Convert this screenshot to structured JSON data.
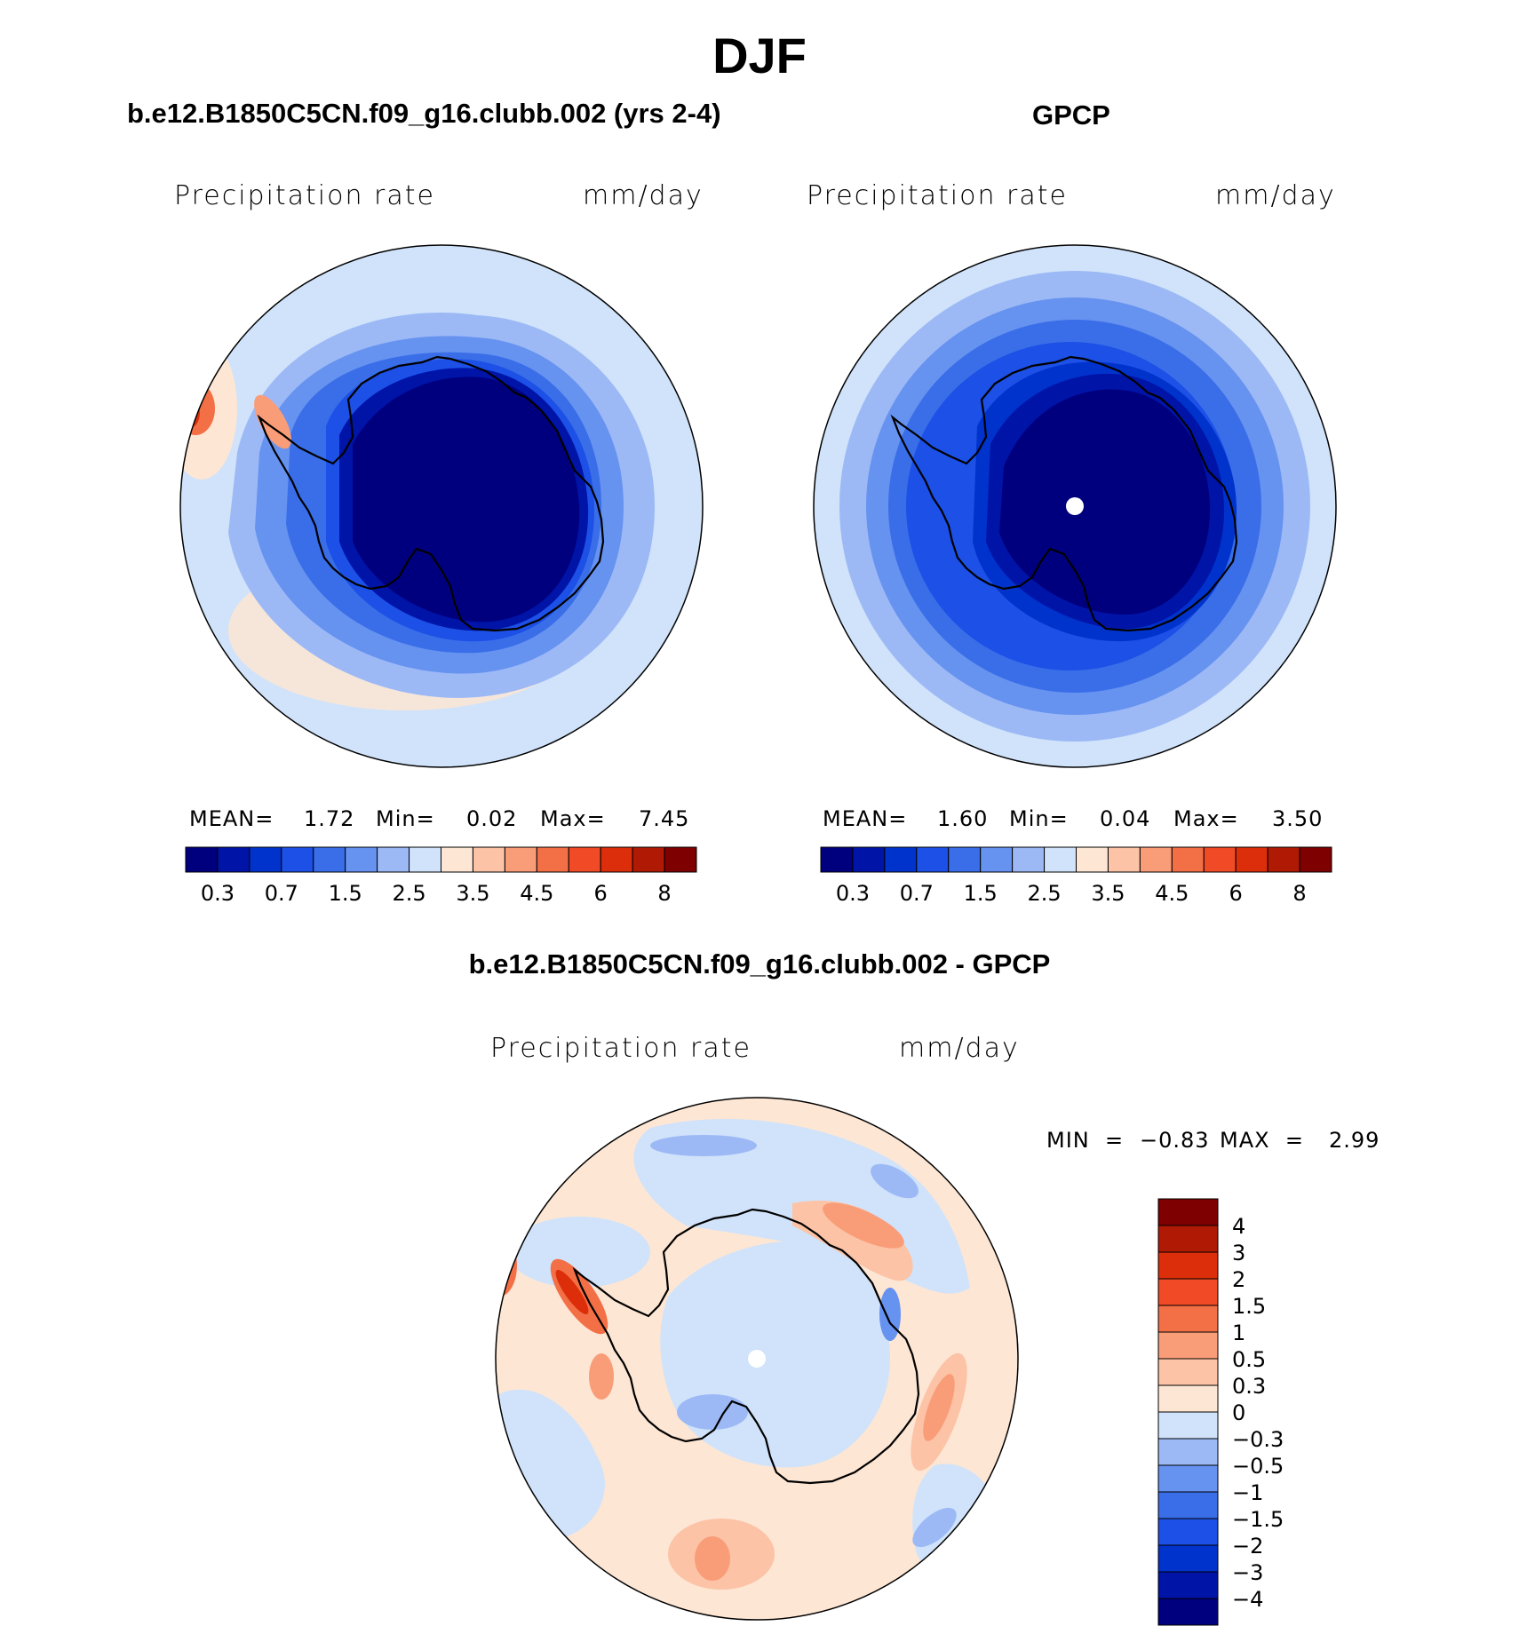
{
  "title": "DJF",
  "panels": [
    {
      "title": "b.e12.B1850C5CN.f09_g16.clubb.002 (yrs 2-4)",
      "variable": "Precipitation  rate",
      "units": "mm/day",
      "stats": {
        "mean_label": "MEAN=",
        "mean": "1.72",
        "min_label": "Min=",
        "min": "0.02",
        "max_label": "Max=",
        "max": "7.45"
      }
    },
    {
      "title": "GPCP",
      "variable": "Precipitation  rate",
      "units": "mm/day",
      "stats": {
        "mean_label": "MEAN=",
        "mean": "1.60",
        "min_label": "Min=",
        "min": "0.04",
        "max_label": "Max=",
        "max": "3.50"
      }
    },
    {
      "title": "b.e12.B1850C5CN.f09_g16.clubb.002 - GPCP",
      "variable": "Precipitation  rate",
      "units": "mm/day",
      "stats": {
        "min_label": "MIN  =",
        "min": "−0.83",
        "max_label": "MAX  =",
        "max": "2.99"
      }
    }
  ],
  "colorbar_abs": {
    "colors": [
      "#00007f",
      "#0014a8",
      "#0033cc",
      "#1c50e6",
      "#3a6ee8",
      "#6692f0",
      "#9cb9f6",
      "#d0e3fa",
      "#fde6d4",
      "#fcc3a6",
      "#f99d78",
      "#f36f46",
      "#f04a26",
      "#dc2e0a",
      "#b01a04",
      "#7f0000"
    ],
    "tick_labels": [
      "0.3",
      "0.7",
      "1.5",
      "2.5",
      "3.5",
      "4.5",
      "6",
      "8"
    ]
  },
  "colorbar_diff": {
    "colors": [
      "#00007f",
      "#0014a8",
      "#0033cc",
      "#1c50e6",
      "#3a6ee8",
      "#6692f0",
      "#9cb9f6",
      "#d0e3fa",
      "#fde6d4",
      "#fcc3a6",
      "#f99d78",
      "#f36f46",
      "#f04a26",
      "#dc2e0a",
      "#b01a04",
      "#7f0000"
    ],
    "tick_labels": [
      "4",
      "3",
      "2",
      "1.5",
      "1",
      "0.5",
      "0.3",
      "0",
      "−0.3",
      "−0.5",
      "−1",
      "−1.5",
      "−2",
      "−3",
      "−4"
    ]
  },
  "map_colors": {
    "deep": "#00007f",
    "dark": "#0014a8",
    "blue": "#1c50e6",
    "mid": "#3a6ee8",
    "light": "#6692f0",
    "pale": "#9cb9f6",
    "faint": "#d0e3fa",
    "cream": "#fde6d4",
    "peach": "#fcc3a6",
    "salmon": "#f99d78",
    "red": "#f04a26"
  }
}
